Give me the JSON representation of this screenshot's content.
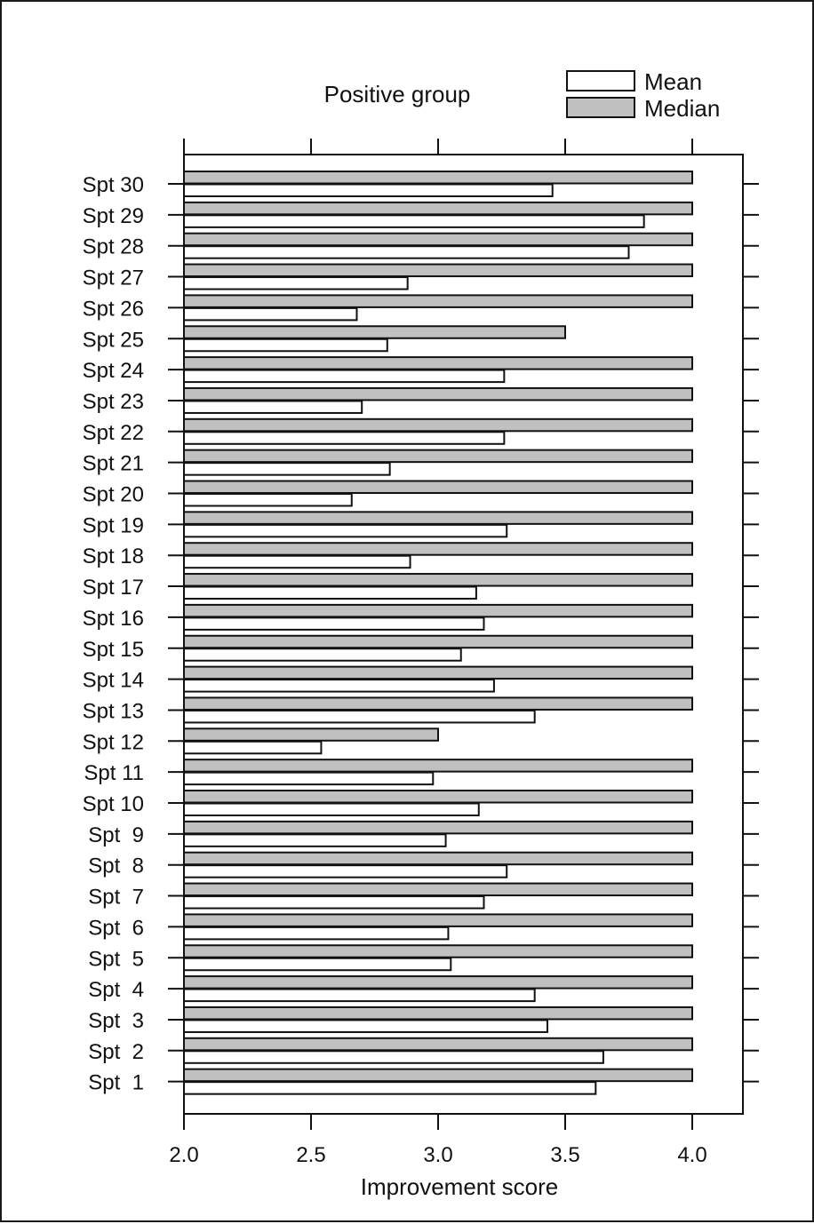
{
  "chart_data": {
    "type": "bar",
    "orientation": "horizontal",
    "title": "Positive group",
    "xlabel": "Improvement score",
    "xlim": [
      2.0,
      4.2
    ],
    "xticks": [
      "2.0",
      "2.5",
      "3.0",
      "3.5",
      "4.0"
    ],
    "xtick_values": [
      2.0,
      2.5,
      3.0,
      3.5,
      4.0
    ],
    "legend_placement": "top-right",
    "grid": false,
    "categories": [
      "Spt 30",
      "Spt 29",
      "Spt 28",
      "Spt 27",
      "Spt 26",
      "Spt 25",
      "Spt 24",
      "Spt 23",
      "Spt 22",
      "Spt 21",
      "Spt 20",
      "Spt 19",
      "Spt 18",
      "Spt 17",
      "Spt 16",
      "Spt 15",
      "Spt 14",
      "Spt 13",
      "Spt 12",
      "Spt 11",
      "Spt 10",
      "Spt  9",
      "Spt  8",
      "Spt  7",
      "Spt  6",
      "Spt  5",
      "Spt  4",
      "Spt  3",
      "Spt  2",
      "Spt  1"
    ],
    "series": [
      {
        "name": "Median",
        "color": "#c0c0c0",
        "values": [
          4.0,
          4.0,
          4.0,
          4.0,
          4.0,
          3.5,
          4.0,
          4.0,
          4.0,
          4.0,
          4.0,
          4.0,
          4.0,
          4.0,
          4.0,
          4.0,
          4.0,
          4.0,
          3.0,
          4.0,
          4.0,
          4.0,
          4.0,
          4.0,
          4.0,
          4.0,
          4.0,
          4.0,
          4.0,
          4.0
        ]
      },
      {
        "name": "Mean",
        "color": "#ffffff",
        "values": [
          3.45,
          3.81,
          3.75,
          2.88,
          2.68,
          2.8,
          3.26,
          2.7,
          3.26,
          2.81,
          2.66,
          3.27,
          2.89,
          3.15,
          3.18,
          3.09,
          3.22,
          3.38,
          2.54,
          2.98,
          3.16,
          3.03,
          3.27,
          3.18,
          3.04,
          3.05,
          3.38,
          3.43,
          3.65,
          3.62
        ]
      }
    ]
  }
}
